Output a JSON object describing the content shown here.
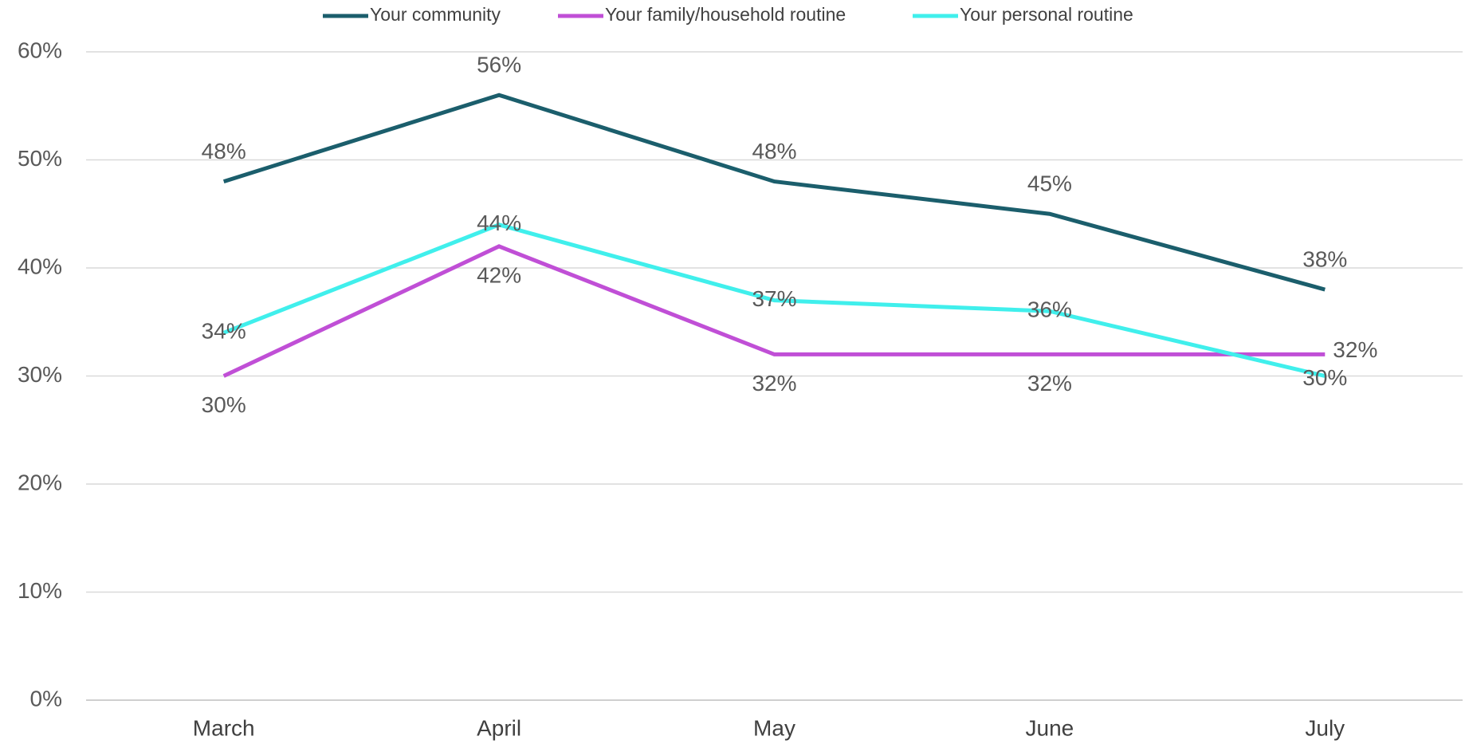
{
  "chart_data": {
    "type": "line",
    "categories": [
      "March",
      "April",
      "May",
      "June",
      "July"
    ],
    "series": [
      {
        "name": "Your community",
        "color": "#1b5e6c",
        "values": [
          48,
          56,
          48,
          45,
          38
        ],
        "value_labels": [
          "48%",
          "56%",
          "48%",
          "45%",
          "38%"
        ]
      },
      {
        "name": "Your family/household routine",
        "color": "#c04fd6",
        "values": [
          30,
          42,
          32,
          32,
          32
        ],
        "value_labels": [
          "30%",
          "42%",
          "32%",
          "32%",
          "32%"
        ]
      },
      {
        "name": "Your personal routine",
        "color": "#40efec",
        "values": [
          34,
          44,
          37,
          36,
          30
        ],
        "value_labels": [
          "34%",
          "44%",
          "37%",
          "36%",
          "30%"
        ]
      }
    ],
    "ylim": [
      0,
      60
    ],
    "yticks": [
      {
        "value": 0,
        "label": "0%"
      },
      {
        "value": 10,
        "label": "10%"
      },
      {
        "value": 20,
        "label": "20%"
      },
      {
        "value": 30,
        "label": "30%"
      },
      {
        "value": 40,
        "label": "40%"
      },
      {
        "value": 50,
        "label": "50%"
      },
      {
        "value": 60,
        "label": "60%"
      }
    ],
    "grid": true,
    "legend": "top"
  }
}
